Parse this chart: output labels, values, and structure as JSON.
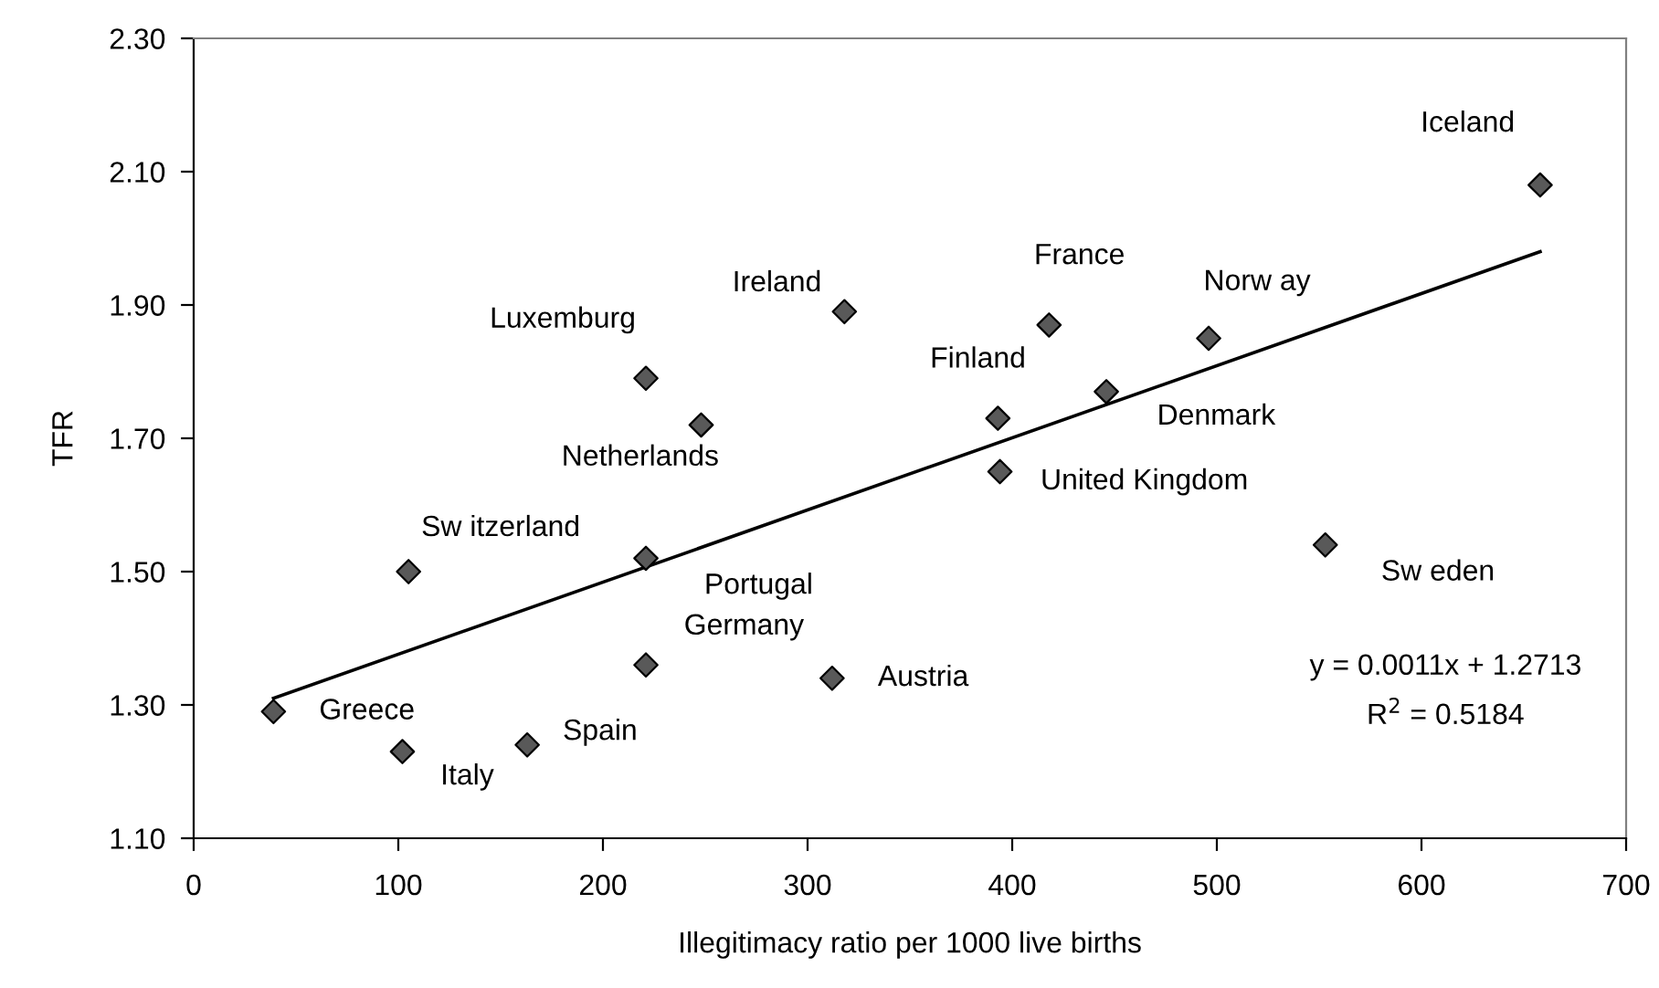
{
  "chart_data": {
    "type": "scatter",
    "xlabel": "Illegitimacy ratio per 1000 live births",
    "ylabel": "TFR",
    "series": [
      {
        "color": "#595959",
        "marker": "diamond",
        "x": [
          39,
          102,
          163,
          105,
          221,
          221,
          221,
          248,
          312,
          318,
          393,
          394,
          418,
          446,
          496,
          553,
          658
        ],
        "values": [
          1.29,
          1.23,
          1.24,
          1.5,
          1.52,
          1.36,
          1.79,
          1.72,
          1.34,
          1.89,
          1.73,
          1.65,
          1.87,
          1.77,
          1.85,
          1.54,
          2.08
        ]
      },
      {
        "type": "line",
        "color": "#000000",
        "marker": "none",
        "line_style": "solid",
        "x": [
          39,
          658
        ],
        "values": [
          1.31,
          1.98
        ]
      }
    ],
    "annotations": [
      {
        "text": "Greece",
        "x": 39,
        "y": 1.29
      },
      {
        "text": "Italy",
        "x": 102,
        "y": 1.23
      },
      {
        "text": "Spain",
        "x": 163,
        "y": 1.24
      },
      {
        "text": "Sw itzerland",
        "x": 105,
        "y": 1.5
      },
      {
        "text": "Portugal",
        "x": 221,
        "y": 1.52
      },
      {
        "text": "Germany",
        "x": 221,
        "y": 1.36
      },
      {
        "text": "Luxemburg",
        "x": 221,
        "y": 1.79
      },
      {
        "text": "Netherlands",
        "x": 248,
        "y": 1.72
      },
      {
        "text": "Austria",
        "x": 312,
        "y": 1.34
      },
      {
        "text": "Ireland",
        "x": 318,
        "y": 1.89
      },
      {
        "text": "Finland",
        "x": 393,
        "y": 1.73
      },
      {
        "text": "United Kingdom",
        "x": 394,
        "y": 1.65
      },
      {
        "text": "France",
        "x": 418,
        "y": 1.87
      },
      {
        "text": "Denmark",
        "x": 446,
        "y": 1.77
      },
      {
        "text": "Norw ay",
        "x": 496,
        "y": 1.85
      },
      {
        "text": "Sw eden",
        "x": 553,
        "y": 1.54
      },
      {
        "text": "Iceland",
        "x": 658,
        "y": 2.08
      },
      "y = 0.0011x + 1.2713",
      "R$^{2}$ = 0.5184"
    ],
    "xlim": [
      0,
      700
    ],
    "xticks": [
      0,
      100,
      200,
      300,
      400,
      500,
      600,
      700
    ],
    "ylim": [
      1.1,
      2.3
    ],
    "yticks": [
      {
        "value": 1.1,
        "label": "1.10"
      },
      {
        "value": 1.3,
        "label": "1.30"
      },
      {
        "value": 1.5,
        "label": "1.50"
      },
      {
        "value": 1.7,
        "label": "1.70"
      },
      {
        "value": 1.9,
        "label": "1.90"
      },
      {
        "value": 2.1,
        "label": "2.10"
      },
      {
        "value": 2.3,
        "label": "2.30"
      }
    ],
    "grid": false,
    "legend": false
  }
}
